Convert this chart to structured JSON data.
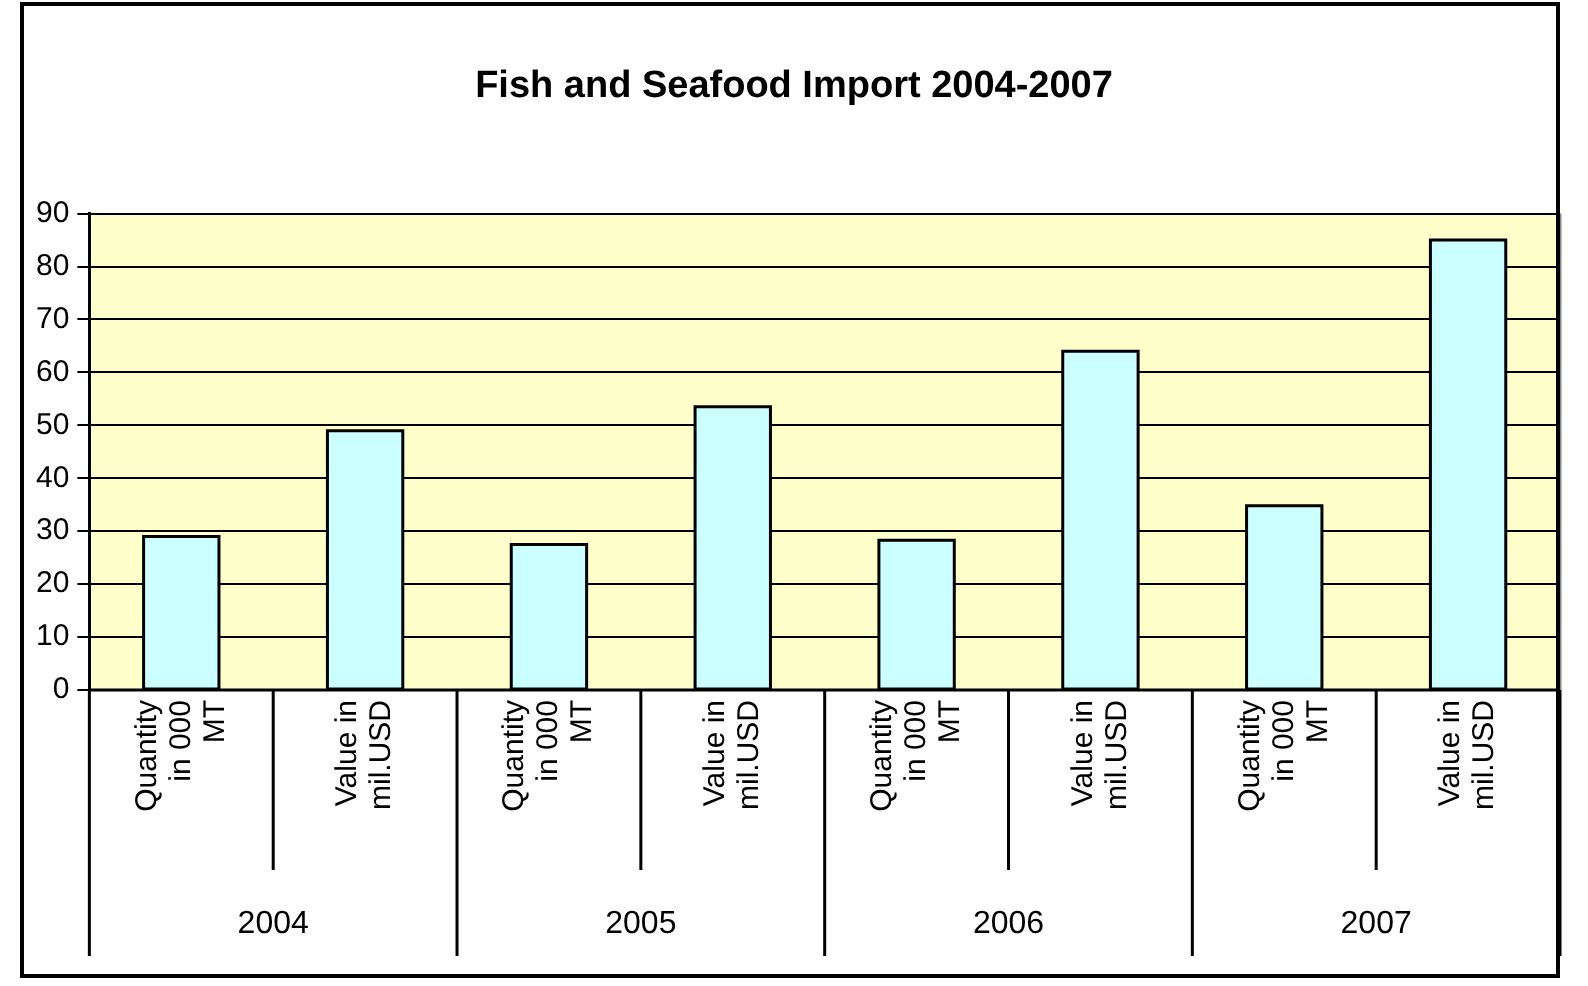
{
  "chart_data": {
    "type": "bar",
    "title": "Fish and Seafood Import 2004-2007",
    "categories": [
      "Quantity in 000 MT",
      "Value in mil.USD",
      "Quantity in 000 MT",
      "Value in mil.USD",
      "Quantity in 000 MT",
      "Value in mil.USD",
      "Quantity in 000 MT",
      "Value in mil.USD"
    ],
    "values": [
      29,
      49,
      27.5,
      53.5,
      28.3,
      64,
      34.8,
      85
    ],
    "color": "#ccffff",
    "ylim": [
      0,
      90
    ],
    "yticks": [
      0,
      10,
      20,
      30,
      40,
      50,
      60,
      70,
      80,
      90
    ],
    "grid": "y",
    "legend": false,
    "annotations": [
      "2004",
      "2005",
      "2006",
      "2007"
    ]
  }
}
